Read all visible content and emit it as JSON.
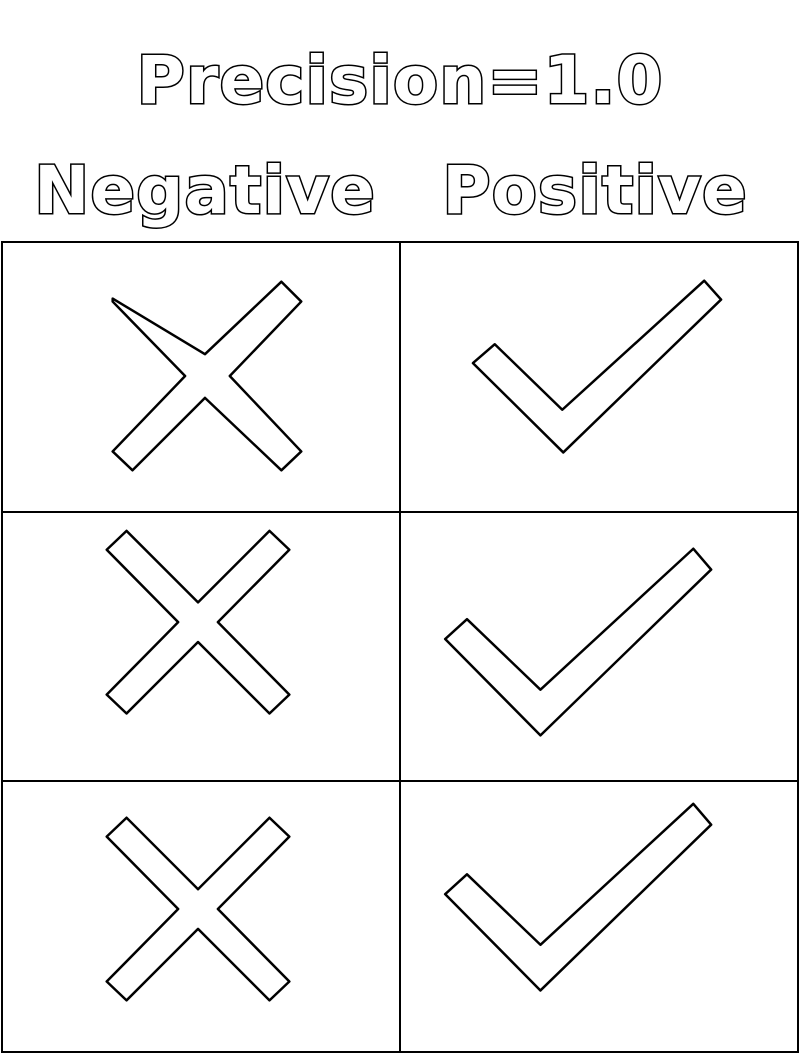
{
  "title": "Precision=1.0",
  "columns": {
    "negative": "Negative",
    "positive": "Positive"
  },
  "rows": [
    {
      "negative": "cross-icon",
      "positive": "check-icon"
    },
    {
      "negative": "cross-icon",
      "positive": "check-icon"
    },
    {
      "negative": "cross-icon",
      "positive": "check-icon"
    }
  ],
  "colors": {
    "stroke": "#000000",
    "background": "#ffffff"
  }
}
